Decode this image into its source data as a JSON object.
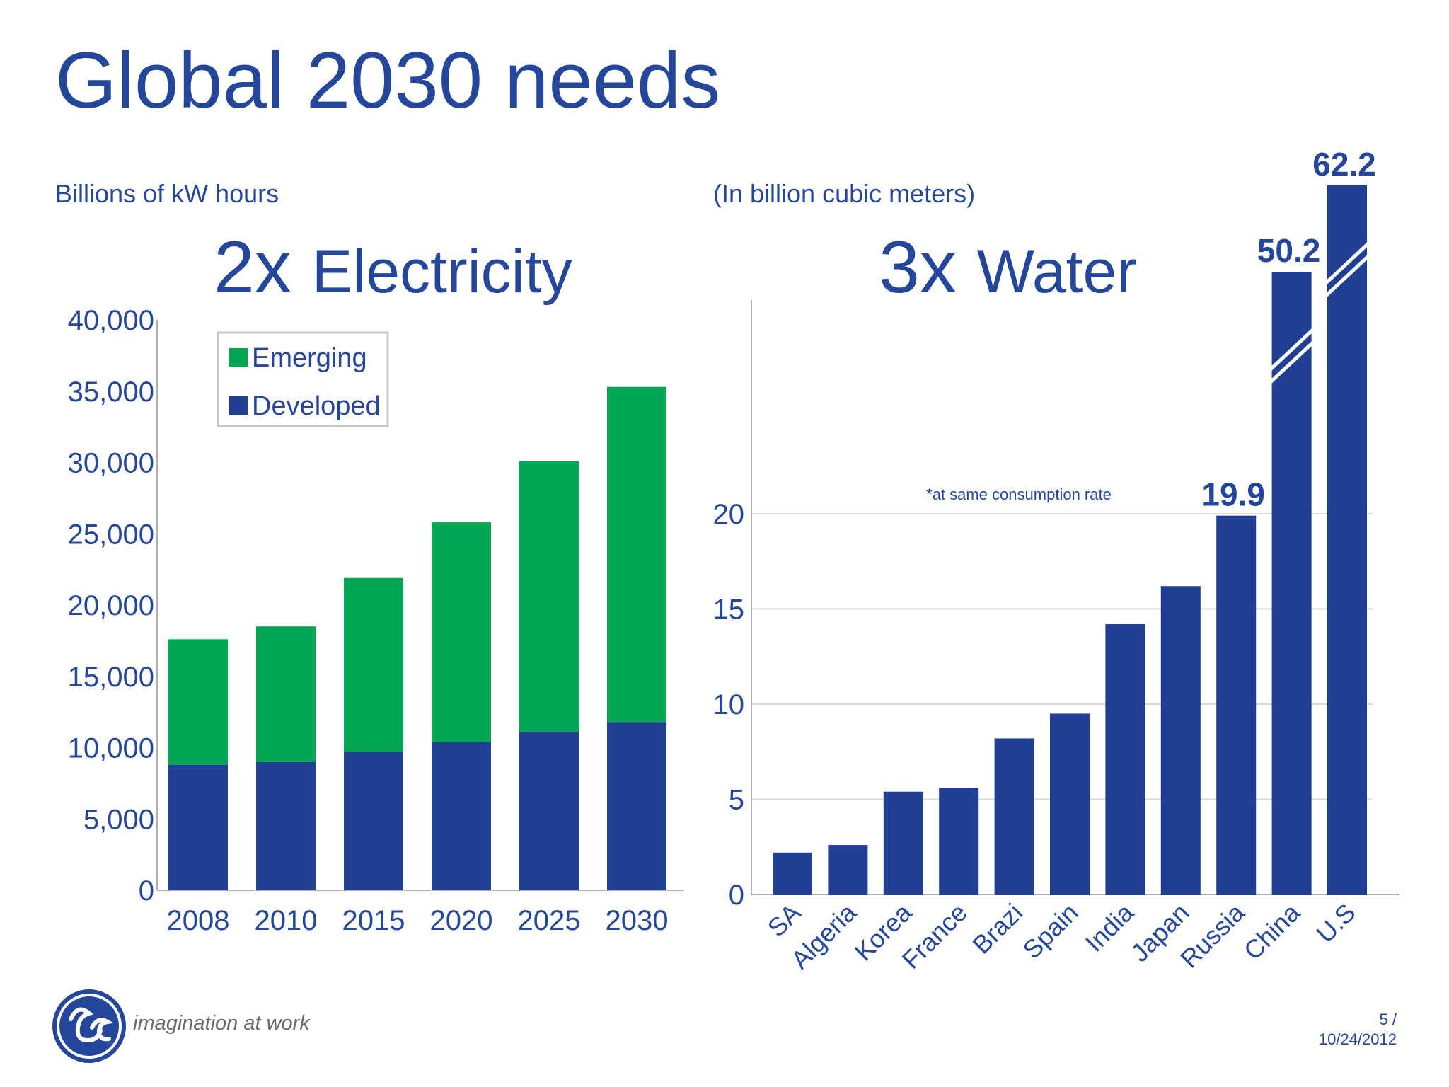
{
  "title": "Global 2030 needs",
  "logo": {
    "tagline": "imagination at work",
    "icon": "ge-logo-icon"
  },
  "footer": {
    "page": "5 /",
    "date": "10/24/2012"
  },
  "colors": {
    "primary": "#24479b",
    "emerging": "#00a651",
    "developed": "#213f93",
    "axis": "#b0b0b0"
  },
  "chart_data": [
    {
      "type": "bar",
      "stacked": true,
      "unit_label": "Billions of kW hours",
      "heading_num": "2x",
      "heading_word": "Electricity",
      "categories": [
        "2008",
        "2010",
        "2015",
        "2020",
        "2025",
        "2030"
      ],
      "series": [
        {
          "name": "Developed",
          "values": [
            8800,
            9000,
            9700,
            10400,
            11100,
            11800
          ]
        },
        {
          "name": "Emerging",
          "values": [
            8800,
            9500,
            12200,
            15400,
            19000,
            23500
          ]
        }
      ],
      "yticks": [
        "0",
        "5,000",
        "10,000",
        "15,000",
        "20,000",
        "25,000",
        "30,000",
        "35,000",
        "40,000"
      ],
      "ylim": [
        0,
        40000
      ],
      "legend": "top-left",
      "grid": false
    },
    {
      "type": "bar",
      "unit_label": "(In billion cubic meters)",
      "heading_num": "3x",
      "heading_word": "Water",
      "note": "*at same consumption rate",
      "categories": [
        "SA",
        "Algeria",
        "Korea",
        "France",
        "Brazi",
        "Spain",
        "India",
        "Japan",
        "Russia",
        "China",
        "U.S"
      ],
      "values": [
        2.2,
        2.6,
        5.4,
        5.6,
        8.2,
        9.5,
        14.2,
        16.2,
        19.9,
        50.2,
        62.2
      ],
      "data_labels": [
        "",
        "",
        "",
        "",
        "",
        "",
        "",
        "",
        "19.9",
        "50.2",
        "62.2"
      ],
      "yticks": [
        "0",
        "5",
        "10",
        "15",
        "20"
      ],
      "ylim": [
        0,
        20
      ],
      "axis_break": true,
      "grid": true
    }
  ]
}
